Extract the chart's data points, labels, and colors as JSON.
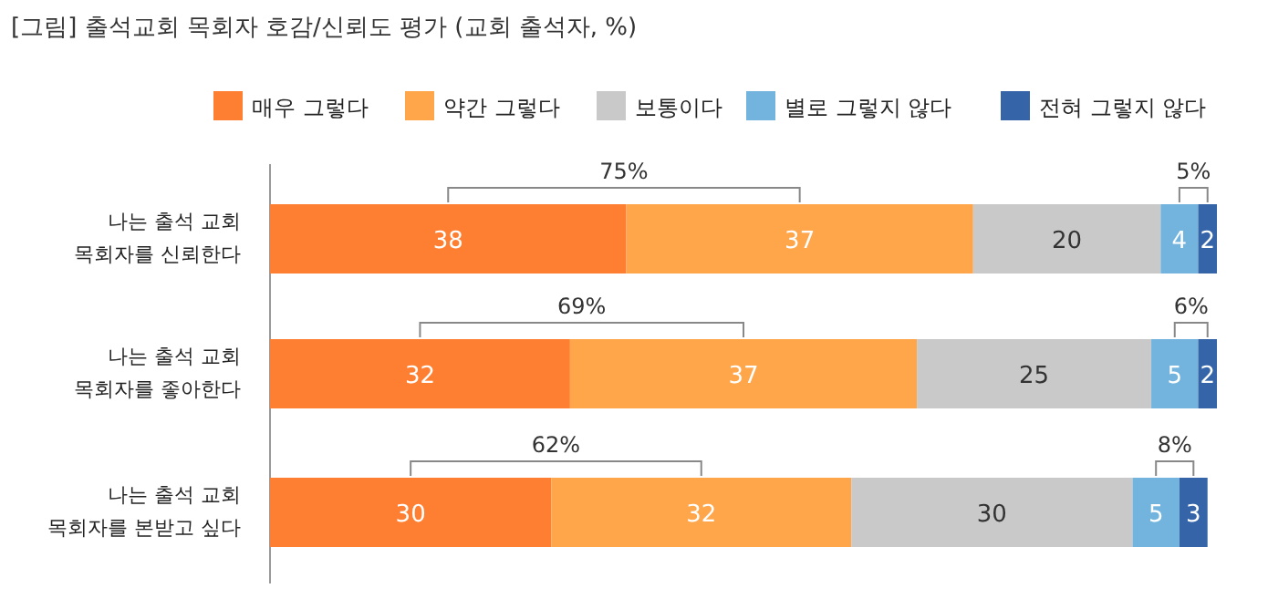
{
  "chart_data": {
    "type": "bar",
    "title": "[그림] 출석교회 목회자 호감/신뢰도 평가 (교회 출석자, %)",
    "orientation": "horizontal",
    "stacked": true,
    "data_labels": true,
    "legend": "top right",
    "categories": [
      "나는 출석 교회 목회자를 신뢰한다",
      "나는 출석 교회 목회자를 좋아한다",
      "나는 출석 교회 목회자를 본받고 싶다"
    ],
    "series": [
      {
        "name": "매우 그렇다",
        "color": "#ff7f32",
        "values": [
          38,
          32,
          30
        ]
      },
      {
        "name": "약간 그렇다",
        "color": "#ffa54a",
        "values": [
          37,
          37,
          32
        ]
      },
      {
        "name": "보통이다",
        "color": "#c9c9c9",
        "values": [
          20,
          25,
          30
        ]
      },
      {
        "name": "별로 그렇지 않다",
        "color": "#72b4de",
        "values": [
          4,
          5,
          5
        ]
      },
      {
        "name": "전혀 그렇지 않다",
        "color": "#3565a8",
        "values": [
          2,
          2,
          3
        ]
      }
    ],
    "annotations": [
      "75%",
      "5%",
      "69%",
      "6%",
      "62%",
      "8%"
    ]
  }
}
